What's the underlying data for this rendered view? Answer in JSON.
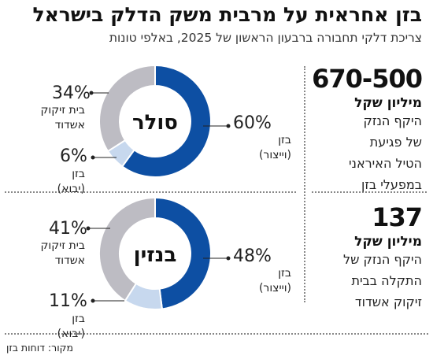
{
  "header": {
    "title": "בזן אחראית על מרבית משק הדלק בישראל",
    "subtitle": "צריכת דלקי תחבורה ברבעון הראשון של 2025, באלפי טונות"
  },
  "stats": [
    {
      "value": "670-500",
      "unit": "מיליון שקל",
      "description": [
        "היקף הנזק",
        "של פגיעת",
        "הטיל האיראני",
        "במפעלי בזן"
      ]
    },
    {
      "value": "137",
      "unit": "מיליון שקל",
      "description": [
        "היקף הנזק של",
        "התקלה בבית",
        "זיקוק אשדוד"
      ]
    }
  ],
  "source": "מקור: דוחות בזן",
  "colors": {
    "bazan_haifa": "#0d4fa3",
    "bazan_yavo": "#c7d8ee",
    "ashdod": "#bdbcc3"
  },
  "chart_data": [
    {
      "type": "pie",
      "title": "סולר",
      "slices": [
        {
          "label_lines": [
            "בזן",
            "(וייצור)"
          ],
          "value": 60,
          "display": "60%"
        },
        {
          "label_lines": [
            "בזן",
            "(יבוא)"
          ],
          "value": 6,
          "display": "6%"
        },
        {
          "label_lines": [
            "בית זיקוק",
            "אשדוד"
          ],
          "value": 34,
          "display": "34%"
        }
      ]
    },
    {
      "type": "pie",
      "title": "בנזין",
      "slices": [
        {
          "label_lines": [
            "בזן",
            "(וייצור)"
          ],
          "value": 48,
          "display": "48%"
        },
        {
          "label_lines": [
            "בזן",
            "(יבוא)"
          ],
          "value": 11,
          "display": "11%"
        },
        {
          "label_lines": [
            "בית זיקוק",
            "אשדוד"
          ],
          "value": 41,
          "display": "41%"
        }
      ]
    }
  ]
}
